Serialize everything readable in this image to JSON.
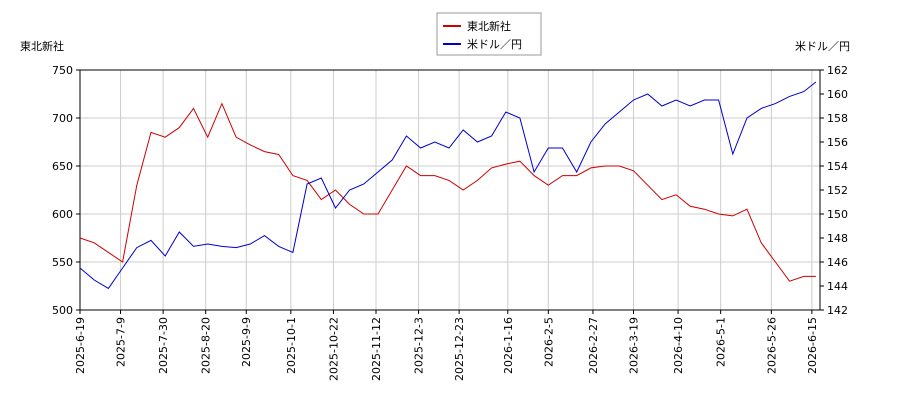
{
  "chart_data": {
    "type": "line",
    "ylabel": "東北新社",
    "y2label": "米ドル／円",
    "x": [
      "2025-6-19",
      "2025-6-26",
      "2025-7-3",
      "2025-7-10",
      "2025-7-17",
      "2025-7-24",
      "2025-7-31",
      "2025-8-7",
      "2025-8-14",
      "2025-8-21",
      "2025-8-28",
      "2025-9-4",
      "2025-9-11",
      "2025-9-18",
      "2025-9-25",
      "2025-10-2",
      "2025-10-9",
      "2025-10-16",
      "2025-10-23",
      "2025-10-30",
      "2025-11-6",
      "2025-11-13",
      "2025-11-20",
      "2025-11-27",
      "2025-12-4",
      "2025-12-11",
      "2025-12-18",
      "2025-12-25",
      "2026-1-1",
      "2026-1-8",
      "2026-1-15",
      "2026-1-22",
      "2026-1-29",
      "2026-2-5",
      "2026-2-12",
      "2026-2-19",
      "2026-2-26",
      "2026-3-5",
      "2026-3-12",
      "2026-3-19",
      "2026-3-26",
      "2026-4-2",
      "2026-4-9",
      "2026-4-16",
      "2026-4-23",
      "2026-4-30",
      "2026-5-7",
      "2026-5-14",
      "2026-5-21",
      "2026-5-28",
      "2026-6-4",
      "2026-6-11",
      "2026-6-17"
    ],
    "series": [
      {
        "name": "東北新社",
        "color": "#cc0000",
        "axis": "y",
        "values": [
          575,
          570,
          560,
          550,
          630,
          685,
          680,
          690,
          710,
          680,
          715,
          680,
          672,
          665,
          662,
          640,
          635,
          615,
          625,
          610,
          600,
          600,
          625,
          650,
          640,
          640,
          635,
          625,
          635,
          648,
          652,
          655,
          640,
          630,
          640,
          640,
          648,
          650,
          650,
          645,
          630,
          615,
          620,
          608,
          605,
          600,
          598,
          605,
          570,
          550,
          530,
          535,
          535
        ]
      },
      {
        "name": "米ドル／円",
        "color": "#0000cc",
        "axis": "y2",
        "values": [
          145.5,
          144.5,
          143.8,
          145.5,
          147.2,
          147.8,
          146.5,
          148.5,
          147.3,
          147.5,
          147.3,
          147.2,
          147.5,
          148.2,
          147.3,
          146.8,
          152.5,
          153,
          150.5,
          152,
          152.5,
          153.5,
          154.5,
          156.5,
          155.5,
          156,
          155.5,
          157,
          156,
          156.5,
          158.5,
          158,
          153.5,
          155.5,
          155.5,
          153.5,
          156,
          157.5,
          158.5,
          159.5,
          160,
          159,
          159.5,
          159,
          159.5,
          159.5,
          155,
          158,
          158.8,
          159.2,
          159.8,
          160.2,
          161
        ]
      }
    ],
    "xlim": [
      "2025-6-19",
      "2026-6-19"
    ],
    "xticks": [
      "2025-6-19",
      "2025-7-9",
      "2025-7-30",
      "2025-8-20",
      "2025-9-9",
      "2025-10-1",
      "2025-10-22",
      "2025-11-12",
      "2025-12-3",
      "2025-12-23",
      "2026-1-16",
      "2026-2-5",
      "2026-2-27",
      "2026-3-19",
      "2026-4-10",
      "2026-5-1",
      "2026-5-26",
      "2026-6-15"
    ],
    "ylim": [
      500,
      750
    ],
    "yticks": [
      500,
      550,
      600,
      650,
      700,
      750
    ],
    "y2lim": [
      142,
      162
    ],
    "y2ticks": [
      142,
      144,
      146,
      148,
      150,
      152,
      154,
      156,
      158,
      160,
      162
    ],
    "grid": true,
    "legend": "upper center"
  }
}
